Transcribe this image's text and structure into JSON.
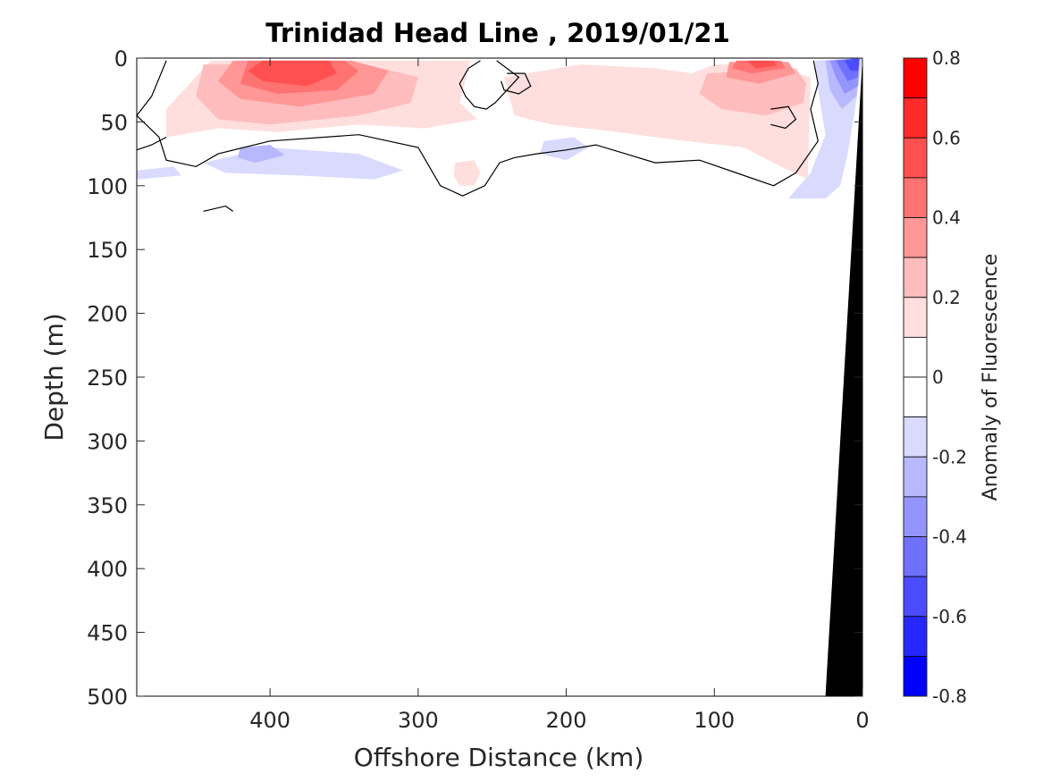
{
  "chart_data": {
    "type": "heatmap",
    "title": "Trinidad Head Line , 2019/01/21",
    "xlabel": "Offshore Distance (km)",
    "ylabel": "Depth (m)",
    "xlim": [
      490,
      0
    ],
    "ylim": [
      0,
      500
    ],
    "x_reversed": true,
    "y_reversed": true,
    "x_ticks": [
      "400",
      "300",
      "200",
      "100",
      "0"
    ],
    "x_tick_values": [
      400,
      300,
      200,
      100,
      0
    ],
    "y_ticks": [
      "0",
      "50",
      "100",
      "150",
      "200",
      "250",
      "300",
      "350",
      "400",
      "450",
      "500"
    ],
    "y_tick_values": [
      0,
      50,
      100,
      150,
      200,
      250,
      300,
      350,
      400,
      450,
      500
    ],
    "colorbar": {
      "label": "Anomaly of Fluorescence",
      "range": [
        -0.8,
        0.8
      ],
      "ticks": [
        "0.8",
        "0.6",
        "0.4",
        "0.2",
        "0",
        "-0.2",
        "-0.4",
        "-0.6",
        "-0.8"
      ],
      "tick_values": [
        0.8,
        0.6,
        0.4,
        0.2,
        0,
        -0.2,
        -0.4,
        -0.6,
        -0.8
      ],
      "levels": [
        {
          "from": 0.7,
          "to": 0.8,
          "color": "#ff0000"
        },
        {
          "from": 0.6,
          "to": 0.7,
          "color": "#ff2a2a"
        },
        {
          "from": 0.5,
          "to": 0.6,
          "color": "#ff4f4f"
        },
        {
          "from": 0.4,
          "to": 0.5,
          "color": "#ff7272"
        },
        {
          "from": 0.3,
          "to": 0.4,
          "color": "#ff9797"
        },
        {
          "from": 0.2,
          "to": 0.3,
          "color": "#ffbcbc"
        },
        {
          "from": 0.1,
          "to": 0.2,
          "color": "#ffdede"
        },
        {
          "from": 0.0,
          "to": 0.1,
          "color": "#ffffff"
        },
        {
          "from": -0.1,
          "to": 0.0,
          "color": "#ffffff"
        },
        {
          "from": -0.2,
          "to": -0.1,
          "color": "#dadaff"
        },
        {
          "from": -0.3,
          "to": -0.2,
          "color": "#b8b8ff"
        },
        {
          "from": -0.4,
          "to": -0.3,
          "color": "#9494ff"
        },
        {
          "from": -0.5,
          "to": -0.4,
          "color": "#7070ff"
        },
        {
          "from": -0.6,
          "to": -0.5,
          "color": "#4b4bff"
        },
        {
          "from": -0.7,
          "to": -0.6,
          "color": "#2626ff"
        },
        {
          "from": -0.8,
          "to": -0.7,
          "color": "#0000ff"
        }
      ]
    },
    "regions": [
      {
        "name": "pos-0.1-main",
        "value": 0.15,
        "points": [
          [
            440,
            2
          ],
          [
            265,
            2
          ],
          [
            272,
            35
          ],
          [
            260,
            48
          ],
          [
            296,
            55
          ],
          [
            340,
            52
          ],
          [
            395,
            58
          ],
          [
            435,
            55
          ],
          [
            470,
            62
          ],
          [
            470,
            40
          ]
        ]
      },
      {
        "name": "pos-0.1-mid",
        "value": 0.15,
        "points": [
          [
            242,
            15
          ],
          [
            190,
            5
          ],
          [
            140,
            8
          ],
          [
            115,
            12
          ],
          [
            100,
            5
          ],
          [
            65,
            5
          ],
          [
            35,
            15
          ],
          [
            37,
            95
          ],
          [
            55,
            85
          ],
          [
            80,
            70
          ],
          [
            120,
            65
          ],
          [
            165,
            58
          ],
          [
            210,
            52
          ],
          [
            235,
            45
          ]
        ]
      },
      {
        "name": "pos-0.1-blob-a",
        "value": 0.15,
        "points": [
          [
            275,
            82
          ],
          [
            262,
            80
          ],
          [
            258,
            90
          ],
          [
            262,
            100
          ],
          [
            272,
            100
          ],
          [
            276,
            92
          ]
        ]
      },
      {
        "name": "pos-0.2-main",
        "value": 0.25,
        "points": [
          [
            445,
            5
          ],
          [
            335,
            5
          ],
          [
            300,
            15
          ],
          [
            305,
            35
          ],
          [
            340,
            45
          ],
          [
            400,
            52
          ],
          [
            435,
            48
          ],
          [
            450,
            30
          ]
        ]
      },
      {
        "name": "pos-0.2-east",
        "value": 0.25,
        "points": [
          [
            105,
            12
          ],
          [
            45,
            8
          ],
          [
            38,
            20
          ],
          [
            40,
            35
          ],
          [
            65,
            45
          ],
          [
            95,
            40
          ],
          [
            110,
            28
          ]
        ]
      },
      {
        "name": "pos-0.3-main",
        "value": 0.35,
        "points": [
          [
            425,
            2
          ],
          [
            345,
            2
          ],
          [
            320,
            10
          ],
          [
            330,
            28
          ],
          [
            380,
            38
          ],
          [
            420,
            32
          ],
          [
            435,
            18
          ]
        ]
      },
      {
        "name": "pos-0.3-east",
        "value": 0.35,
        "points": [
          [
            90,
            3
          ],
          [
            50,
            3
          ],
          [
            45,
            12
          ],
          [
            70,
            20
          ],
          [
            92,
            15
          ]
        ]
      },
      {
        "name": "pos-0.4-main",
        "value": 0.45,
        "points": [
          [
            415,
            2
          ],
          [
            350,
            2
          ],
          [
            340,
            10
          ],
          [
            355,
            25
          ],
          [
            395,
            28
          ],
          [
            420,
            20
          ]
        ]
      },
      {
        "name": "pos-0.4-east",
        "value": 0.45,
        "points": [
          [
            85,
            2
          ],
          [
            55,
            2
          ],
          [
            52,
            8
          ],
          [
            75,
            12
          ],
          [
            88,
            8
          ]
        ]
      },
      {
        "name": "pos-0.5-main",
        "value": 0.55,
        "points": [
          [
            405,
            2
          ],
          [
            360,
            2
          ],
          [
            355,
            12
          ],
          [
            375,
            22
          ],
          [
            405,
            18
          ],
          [
            415,
            10
          ]
        ]
      },
      {
        "name": "pos-0.5-east",
        "value": 0.55,
        "points": [
          [
            78,
            2
          ],
          [
            60,
            2
          ],
          [
            58,
            6
          ],
          [
            72,
            8
          ]
        ]
      },
      {
        "name": "neg-0.1-west",
        "value": -0.15,
        "points": [
          [
            445,
            82
          ],
          [
            400,
            70
          ],
          [
            340,
            75
          ],
          [
            310,
            88
          ],
          [
            330,
            95
          ],
          [
            380,
            92
          ],
          [
            430,
            90
          ]
        ]
      },
      {
        "name": "neg-0.1-west-edge",
        "value": -0.15,
        "points": [
          [
            490,
            88
          ],
          [
            465,
            85
          ],
          [
            460,
            92
          ],
          [
            490,
            95
          ]
        ]
      },
      {
        "name": "neg-0.1-mid",
        "value": -0.15,
        "points": [
          [
            215,
            65
          ],
          [
            195,
            62
          ],
          [
            185,
            70
          ],
          [
            200,
            80
          ],
          [
            218,
            75
          ]
        ]
      },
      {
        "name": "neg-0.1-coast",
        "value": -0.15,
        "points": [
          [
            32,
            2
          ],
          [
            0,
            0
          ],
          [
            5,
            40
          ],
          [
            10,
            75
          ],
          [
            15,
            100
          ],
          [
            25,
            110
          ],
          [
            50,
            110
          ],
          [
            35,
            90
          ],
          [
            25,
            60
          ],
          [
            30,
            25
          ]
        ]
      },
      {
        "name": "neg-0.2-west",
        "value": -0.25,
        "points": [
          [
            420,
            70
          ],
          [
            400,
            68
          ],
          [
            390,
            76
          ],
          [
            410,
            82
          ],
          [
            422,
            78
          ]
        ]
      },
      {
        "name": "neg-0.2-coast",
        "value": -0.25,
        "points": [
          [
            25,
            2
          ],
          [
            2,
            0
          ],
          [
            4,
            30
          ],
          [
            14,
            40
          ],
          [
            22,
            25
          ]
        ]
      },
      {
        "name": "neg-0.3-coast",
        "value": -0.35,
        "points": [
          [
            22,
            2
          ],
          [
            2,
            0
          ],
          [
            3,
            22
          ],
          [
            12,
            28
          ],
          [
            18,
            15
          ]
        ]
      },
      {
        "name": "neg-0.4-coast",
        "value": -0.45,
        "points": [
          [
            18,
            2
          ],
          [
            2,
            0
          ],
          [
            3,
            15
          ],
          [
            10,
            18
          ],
          [
            14,
            10
          ]
        ]
      },
      {
        "name": "neg-0.5-coast",
        "value": -0.55,
        "points": [
          [
            12,
            2
          ],
          [
            2,
            0
          ],
          [
            3,
            10
          ],
          [
            8,
            10
          ]
        ]
      }
    ],
    "zero_contours": [
      {
        "name": "zero-contour-main",
        "points": [
          [
            470,
            2
          ],
          [
            480,
            30
          ],
          [
            490,
            45
          ],
          [
            475,
            62
          ],
          [
            470,
            80
          ],
          [
            450,
            85
          ],
          [
            435,
            75
          ],
          [
            400,
            65
          ],
          [
            340,
            60
          ],
          [
            300,
            70
          ],
          [
            295,
            80
          ],
          [
            285,
            100
          ],
          [
            270,
            108
          ],
          [
            255,
            100
          ],
          [
            245,
            82
          ],
          [
            235,
            78
          ],
          [
            220,
            75
          ],
          [
            200,
            72
          ],
          [
            180,
            68
          ],
          [
            160,
            75
          ],
          [
            140,
            82
          ],
          [
            110,
            80
          ],
          [
            85,
            90
          ],
          [
            60,
            100
          ],
          [
            45,
            90
          ],
          [
            30,
            65
          ],
          [
            35,
            40
          ],
          [
            30,
            20
          ],
          [
            33,
            2
          ]
        ]
      },
      {
        "name": "zero-contour-west-stub",
        "points": [
          [
            490,
            72
          ],
          [
            480,
            68
          ],
          [
            470,
            62
          ]
        ]
      },
      {
        "name": "zero-contour-blob-a",
        "points": [
          [
            247,
            2
          ],
          [
            232,
            15
          ],
          [
            240,
            25
          ],
          [
            248,
            35
          ],
          [
            254,
            40
          ],
          [
            262,
            38
          ],
          [
            268,
            30
          ],
          [
            272,
            20
          ],
          [
            266,
            8
          ],
          [
            258,
            2
          ]
        ]
      },
      {
        "name": "zero-contour-blob-b",
        "points": [
          [
            240,
            12
          ],
          [
            228,
            12
          ],
          [
            224,
            22
          ],
          [
            232,
            28
          ],
          [
            242,
            25
          ],
          [
            244,
            18
          ]
        ]
      },
      {
        "name": "zero-contour-east-ring",
        "points": [
          [
            62,
            40
          ],
          [
            50,
            38
          ],
          [
            45,
            48
          ],
          [
            52,
            55
          ],
          [
            62,
            52
          ]
        ]
      },
      {
        "name": "zero-contour-deep",
        "points": [
          [
            445,
            120
          ],
          [
            430,
            116
          ],
          [
            425,
            120
          ]
        ]
      }
    ],
    "land": {
      "name": "seafloor",
      "color": "#000000",
      "points": [
        [
          0,
          0
        ],
        [
          5,
          100
        ],
        [
          10,
          200
        ],
        [
          15,
          300
        ],
        [
          20,
          400
        ],
        [
          25,
          500
        ],
        [
          0,
          500
        ]
      ]
    }
  }
}
